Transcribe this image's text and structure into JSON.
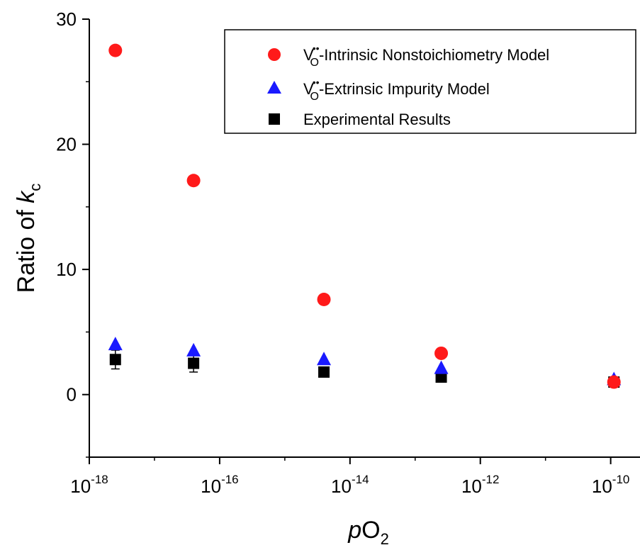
{
  "chart_data": {
    "type": "scatter",
    "x_scale": "log",
    "xlim_exponent": [
      -18,
      -9.55
    ],
    "ylim": [
      -5,
      30
    ],
    "x_major_tick_exponents": [
      -18,
      -16,
      -14,
      -12,
      -10
    ],
    "x_tick_labels": [
      {
        "base": "10",
        "exp": "-18"
      },
      {
        "base": "10",
        "exp": "-16"
      },
      {
        "base": "10",
        "exp": "-14"
      },
      {
        "base": "10",
        "exp": "-12"
      },
      {
        "base": "10",
        "exp": "-10"
      }
    ],
    "y_ticks": [
      0,
      10,
      20,
      30
    ],
    "y_tick_labels": [
      "0",
      "10",
      "20",
      "30"
    ],
    "xlabel": {
      "italic": "p",
      "main": "O",
      "sub": "2"
    },
    "ylabel": {
      "main": "Ratio of ",
      "italic": "k",
      "sub": "c"
    },
    "grid": false,
    "legend_position": "top-right",
    "series": [
      {
        "legend_main": "V",
        "legend_sup": "••",
        "legend_sub": "O",
        "legend_rest": "-Intrinsic Nonstoichiometry Model",
        "marker": "circle",
        "color": "#ff1a1a",
        "points": [
          {
            "x_exp": -17.6,
            "y": 27.5
          },
          {
            "x_exp": -16.4,
            "y": 17.1
          },
          {
            "x_exp": -14.4,
            "y": 7.6
          },
          {
            "x_exp": -12.6,
            "y": 3.3
          },
          {
            "x_exp": -9.95,
            "y": 1.0
          }
        ]
      },
      {
        "legend_main": "V",
        "legend_sup": "••",
        "legend_sub": "O",
        "legend_rest": "-Extrinsic Impurity Model",
        "marker": "triangle",
        "color": "#1a1aff",
        "points": [
          {
            "x_exp": -17.6,
            "y": 4.0
          },
          {
            "x_exp": -16.4,
            "y": 3.5
          },
          {
            "x_exp": -14.4,
            "y": 2.8
          },
          {
            "x_exp": -12.6,
            "y": 2.1
          },
          {
            "x_exp": -9.95,
            "y": 1.2
          }
        ]
      },
      {
        "legend_main": "Experimental Results",
        "marker": "square",
        "color": "#000000",
        "points": [
          {
            "x_exp": -17.6,
            "y": 2.8,
            "err": 0.75
          },
          {
            "x_exp": -16.4,
            "y": 2.5,
            "err": 0.7
          },
          {
            "x_exp": -14.4,
            "y": 1.8,
            "err": 0.3
          },
          {
            "x_exp": -12.6,
            "y": 1.4,
            "err": 0.2
          },
          {
            "x_exp": -9.95,
            "y": 1.0,
            "err": 0.1
          }
        ]
      }
    ]
  }
}
